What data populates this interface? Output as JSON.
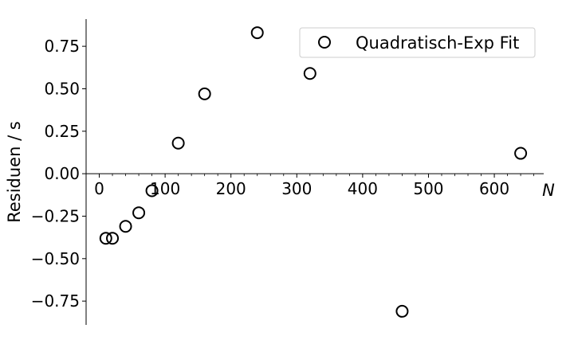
{
  "chart_data": {
    "type": "scatter",
    "xlabel": "N",
    "ylabel": "Residuen / s",
    "xlim": [
      -20,
      675
    ],
    "ylim": [
      -0.89,
      0.91
    ],
    "x_ticks": [
      0,
      100,
      200,
      300,
      400,
      500,
      600
    ],
    "x_tick_labels": [
      "0",
      "100",
      "200",
      "300",
      "400",
      "500",
      "600"
    ],
    "y_ticks": [
      -0.75,
      -0.5,
      -0.25,
      0.0,
      0.25,
      0.5,
      0.75
    ],
    "y_tick_labels": [
      "−0.75",
      "−0.50",
      "−0.25",
      "0.00",
      "0.25",
      "0.50",
      "0.75"
    ],
    "grid": false,
    "legend_placement": "top-right",
    "series": [
      {
        "name": "Quadratisch-Exp Fit",
        "marker": "open-circle",
        "color": "#000000",
        "x": [
          10,
          20,
          40,
          60,
          80,
          120,
          160,
          240,
          320,
          460,
          640
        ],
        "y": [
          -0.38,
          -0.38,
          -0.31,
          -0.23,
          -0.1,
          0.18,
          0.47,
          0.83,
          0.59,
          -0.81,
          0.12
        ]
      }
    ]
  }
}
